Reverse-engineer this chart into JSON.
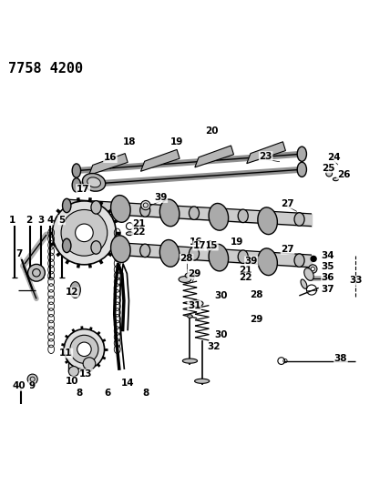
{
  "title": "7758 4200",
  "bg_color": "#ffffff",
  "fig_width": 4.28,
  "fig_height": 5.33,
  "dpi": 100
}
